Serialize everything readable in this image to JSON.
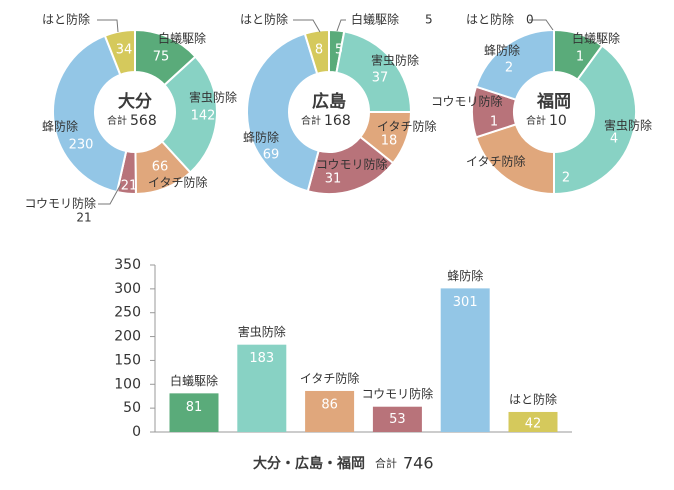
{
  "colors": {
    "white_ant": "#5aab7a",
    "pest": "#88d2c4",
    "weasel": "#e0a77c",
    "bat": "#b8737a",
    "bee": "#93c6e6",
    "pigeon": "#d5c95c"
  },
  "chart_data": [
    {
      "type": "donut",
      "title": "大分",
      "total_label": "合計",
      "total": "568",
      "categories": [
        "白蟻駆除",
        "害虫防除",
        "イタチ防除",
        "コウモリ防除",
        "蜂防除",
        "はと防除"
      ],
      "values": [
        75,
        142,
        66,
        21,
        230,
        34
      ]
    },
    {
      "type": "donut",
      "title": "広島",
      "total_label": "合計",
      "total": "168",
      "categories": [
        "白蟻駆除",
        "害虫防除",
        "イタチ防除",
        "コウモリ防除",
        "蜂防除",
        "はと防除"
      ],
      "values": [
        5,
        37,
        18,
        31,
        69,
        8
      ]
    },
    {
      "type": "donut",
      "title": "福岡",
      "total_label": "合計",
      "total": "10",
      "categories": [
        "白蟻駆除",
        "害虫防除",
        "イタチ防除",
        "コウモリ防除",
        "蜂防除",
        "はと防除"
      ],
      "values": [
        1,
        4,
        2,
        1,
        2,
        0
      ]
    },
    {
      "type": "bar",
      "title": "大分・広島・福岡",
      "total_label": "合計",
      "total": "746",
      "categories": [
        "白蟻駆除",
        "害虫防除",
        "イタチ防除",
        "コウモリ防除",
        "蜂防除",
        "はと防除"
      ],
      "values": [
        81,
        183,
        86,
        53,
        301,
        42
      ],
      "ylim": [
        0,
        350
      ],
      "yticks": [
        0,
        50,
        100,
        150,
        200,
        250,
        300,
        350
      ]
    }
  ]
}
